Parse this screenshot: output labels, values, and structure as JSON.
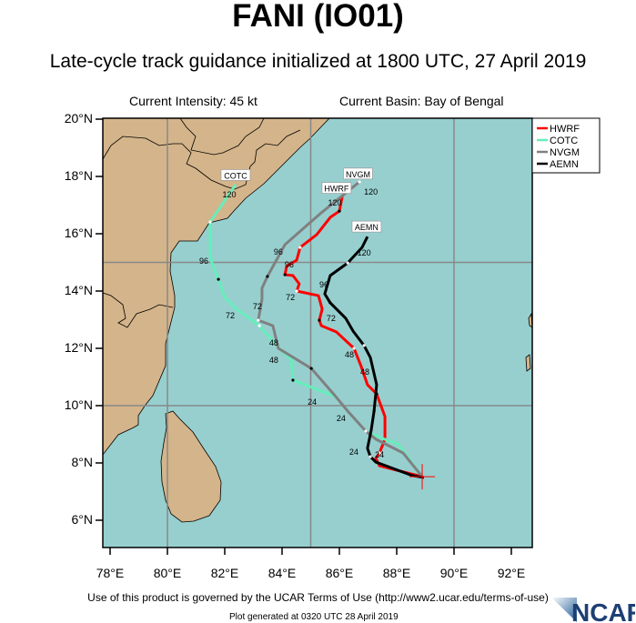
{
  "header": {
    "title": "FANI (IO01)",
    "subtitle": "Late-cycle track guidance initialized at 1800 UTC, 27 April 2019",
    "current_intensity": "Current Intensity: 45 kt",
    "current_basin": "Current Basin: Bay of Bengal"
  },
  "map": {
    "lon_range": [
      77.75,
      92.75
    ],
    "lat_range": [
      5,
      20
    ],
    "lat_labels": [
      "20°N",
      "18°N",
      "16°N",
      "14°N",
      "12°N",
      "10°N",
      "8°N",
      "6°N"
    ],
    "lon_labels": [
      "78°E",
      "80°E",
      "82°E",
      "84°E",
      "86°E",
      "88°E",
      "90°E",
      "92°E"
    ],
    "gridlines_lon": [
      80,
      85,
      90
    ],
    "gridlines_lat": [
      10,
      15
    ],
    "colors": {
      "ocean": "#97cfcf",
      "land": "#d4b48a",
      "grid": "#888888"
    },
    "initial_position": [
      88.89,
      7.52
    ]
  },
  "legend": {
    "items": [
      {
        "name": "HWRF",
        "color": "#ff0000"
      },
      {
        "name": "COTC",
        "color": "#66eebb"
      },
      {
        "name": "NVGM",
        "color": "#808080"
      },
      {
        "name": "AEMN",
        "color": "#000000"
      }
    ]
  },
  "tracks": [
    {
      "name": "HWRF",
      "color": "#ff0000",
      "points": [
        [
          88.89,
          7.52
        ],
        [
          87.4,
          7.9
        ],
        [
          87.27,
          8.16
        ],
        [
          87.4,
          8.35
        ],
        [
          87.59,
          8.83
        ],
        [
          87.59,
          9.62
        ],
        [
          87.3,
          10.41
        ],
        [
          86.98,
          10.73
        ],
        [
          86.76,
          11.37
        ],
        [
          86.51,
          12.0
        ],
        [
          85.9,
          12.57
        ],
        [
          85.37,
          12.79
        ],
        [
          85.3,
          12.98
        ],
        [
          85.4,
          13.37
        ],
        [
          85.27,
          13.84
        ],
        [
          84.51,
          14.0
        ],
        [
          84.6,
          14.25
        ],
        [
          84.38,
          14.54
        ],
        [
          84.1,
          14.57
        ],
        [
          84.16,
          14.86
        ],
        [
          84.51,
          15.08
        ],
        [
          84.63,
          15.52
        ],
        [
          85.21,
          15.97
        ],
        [
          85.68,
          16.57
        ],
        [
          86.0,
          16.79
        ],
        [
          86.1,
          17.3
        ]
      ],
      "hour_labels": [
        {
          "text": "24",
          "lon": 87.21,
          "lat": 8.32
        },
        {
          "text": "48",
          "lon": 86.35,
          "lat": 11.81
        },
        {
          "text": "72",
          "lon": 84.29,
          "lat": 13.81
        },
        {
          "text": "96",
          "lon": 84.25,
          "lat": 14.95
        },
        {
          "text": "120",
          "lon": 85.84,
          "lat": 17.11
        }
      ],
      "tag": {
        "lon": 85.9,
        "lat": 17.6
      }
    },
    {
      "name": "COTC",
      "color": "#66eebb",
      "points": [
        [
          88.89,
          7.52
        ],
        [
          88.03,
          8.67
        ],
        [
          87.49,
          8.86
        ],
        [
          86.92,
          9.11
        ],
        [
          86.29,
          9.81
        ],
        [
          85.87,
          10.32
        ],
        [
          84.38,
          10.89
        ],
        [
          84.32,
          11.62
        ],
        [
          83.9,
          12.0
        ],
        [
          83.21,
          12.79
        ],
        [
          82.38,
          13.4
        ],
        [
          82.0,
          13.78
        ],
        [
          81.78,
          14.41
        ],
        [
          81.56,
          14.95
        ],
        [
          81.49,
          15.3
        ],
        [
          81.49,
          16.41
        ],
        [
          82.38,
          17.71
        ]
      ],
      "hour_labels": [
        {
          "text": "24",
          "lon": 85.05,
          "lat": 10.16
        },
        {
          "text": "48",
          "lon": 83.71,
          "lat": 11.81
        },
        {
          "text": "72",
          "lon": 82.19,
          "lat": 13.17
        },
        {
          "text": "96",
          "lon": 81.27,
          "lat": 15.08
        },
        {
          "text": "120",
          "lon": 82.16,
          "lat": 17.4
        }
      ],
      "tag": {
        "lon": 82.38,
        "lat": 18.05
      }
    },
    {
      "name": "NVGM",
      "color": "#808080",
      "points": [
        [
          88.89,
          7.52
        ],
        [
          88.22,
          8.35
        ],
        [
          87.27,
          8.83
        ],
        [
          86.92,
          9.11
        ],
        [
          86.29,
          9.81
        ],
        [
          85.87,
          10.32
        ],
        [
          85.02,
          11.3
        ],
        [
          83.87,
          12.0
        ],
        [
          83.68,
          12.79
        ],
        [
          83.17,
          12.98
        ],
        [
          83.3,
          13.71
        ],
        [
          83.3,
          14.1
        ],
        [
          83.49,
          14.51
        ],
        [
          84.1,
          15.62
        ],
        [
          85.33,
          16.7
        ],
        [
          86.7,
          17.81
        ]
      ],
      "hour_labels": [
        {
          "text": "24",
          "lon": 86.06,
          "lat": 9.59
        },
        {
          "text": "48",
          "lon": 83.71,
          "lat": 12.03
        },
        {
          "text": "72",
          "lon": 83.14,
          "lat": 13.49
        },
        {
          "text": "96",
          "lon": 83.87,
          "lat": 15.4
        },
        {
          "text": "120",
          "lon": 86.75,
          "lat": 17.55
        }
      ],
      "tag": {
        "lon": 86.65,
        "lat": 18.1
      }
    },
    {
      "name": "AEMN",
      "color": "#000000",
      "points": [
        [
          88.95,
          7.49
        ],
        [
          88.54,
          7.56
        ],
        [
          87.27,
          8.03
        ],
        [
          87.08,
          8.22
        ],
        [
          86.98,
          8.51
        ],
        [
          87.11,
          9.14
        ],
        [
          87.21,
          9.81
        ],
        [
          87.3,
          10.73
        ],
        [
          87.08,
          11.68
        ],
        [
          86.86,
          12.1
        ],
        [
          86.48,
          12.6
        ],
        [
          86.22,
          13.05
        ],
        [
          85.68,
          13.59
        ],
        [
          85.49,
          13.9
        ],
        [
          85.68,
          14.54
        ],
        [
          86.29,
          14.98
        ],
        [
          86.79,
          15.52
        ],
        [
          86.98,
          15.9
        ]
      ],
      "hour_labels": [
        {
          "text": "24",
          "lon": 86.79,
          "lat": 8.41
        },
        {
          "text": "48",
          "lon": 86.89,
          "lat": 11.21
        },
        {
          "text": "72",
          "lon": 85.71,
          "lat": 13.08
        },
        {
          "text": "96",
          "lon": 85.46,
          "lat": 14.25
        },
        {
          "text": "120",
          "lon": 86.86,
          "lat": 15.37
        }
      ],
      "tag": {
        "lon": 86.95,
        "lat": 16.25
      }
    }
  ],
  "footer": {
    "terms": "Use of this product is governed by the UCAR Terms of Use (http://www2.ucar.edu/terms-of-use)",
    "plot_generated": "Plot generated at 0320 UTC   28 April 2019",
    "logo_text": "NCAR"
  }
}
